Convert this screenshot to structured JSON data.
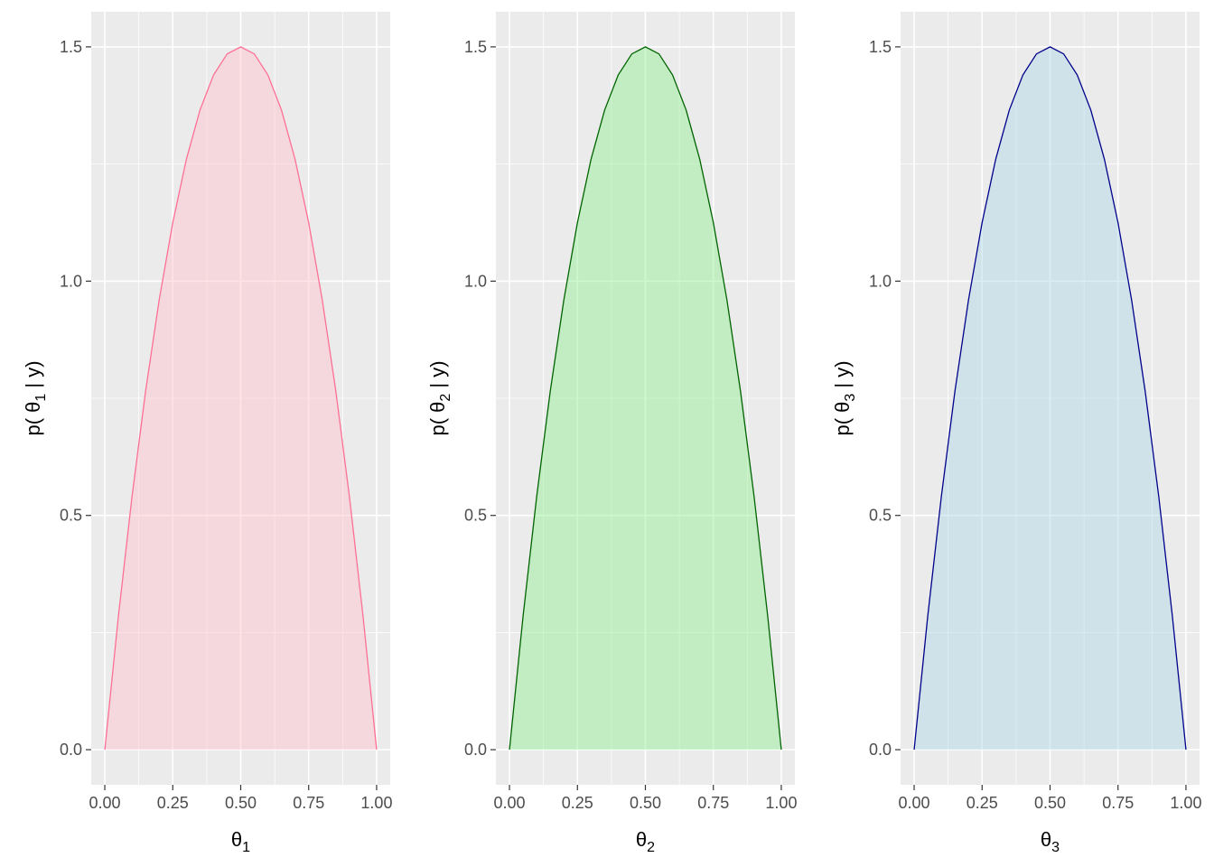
{
  "chart_data": [
    {
      "type": "area",
      "x": [
        0,
        0.05,
        0.1,
        0.15,
        0.2,
        0.25,
        0.3,
        0.35,
        0.4,
        0.45,
        0.5,
        0.55,
        0.6,
        0.65,
        0.7,
        0.75,
        0.8,
        0.85,
        0.9,
        0.95,
        1.0
      ],
      "y": [
        0,
        0.285,
        0.54,
        0.765,
        0.96,
        1.125,
        1.26,
        1.365,
        1.44,
        1.485,
        1.5,
        1.485,
        1.44,
        1.365,
        1.26,
        1.125,
        0.96,
        0.765,
        0.54,
        0.285,
        0
      ],
      "xlabel_base": "θ",
      "xlabel_sub": "1",
      "ylabel_pre": "p( θ",
      "ylabel_sub": "1",
      "ylabel_post": " | y)",
      "xlim": [
        0,
        1
      ],
      "ylim": [
        0,
        1.5
      ],
      "xticks": [
        "0.00",
        "0.25",
        "0.50",
        "0.75",
        "1.00"
      ],
      "yticks": [
        "0.0",
        "0.5",
        "1.0",
        "1.5"
      ],
      "grid": true,
      "line_color": "#ff6f94",
      "fill_color": "#ffc0cb"
    },
    {
      "type": "area",
      "x": [
        0,
        0.05,
        0.1,
        0.15,
        0.2,
        0.25,
        0.3,
        0.35,
        0.4,
        0.45,
        0.5,
        0.55,
        0.6,
        0.65,
        0.7,
        0.75,
        0.8,
        0.85,
        0.9,
        0.95,
        1.0
      ],
      "y": [
        0,
        0.285,
        0.54,
        0.765,
        0.96,
        1.125,
        1.26,
        1.365,
        1.44,
        1.485,
        1.5,
        1.485,
        1.44,
        1.365,
        1.26,
        1.125,
        0.96,
        0.765,
        0.54,
        0.285,
        0
      ],
      "xlabel_base": "θ",
      "xlabel_sub": "2",
      "ylabel_pre": "p( θ",
      "ylabel_sub": "2",
      "ylabel_post": " | y)",
      "xlim": [
        0,
        1
      ],
      "ylim": [
        0,
        1.5
      ],
      "xticks": [
        "0.00",
        "0.25",
        "0.50",
        "0.75",
        "1.00"
      ],
      "yticks": [
        "0.0",
        "0.5",
        "1.0",
        "1.5"
      ],
      "grid": true,
      "line_color": "#006400",
      "fill_color": "#90ee90"
    },
    {
      "type": "area",
      "x": [
        0,
        0.05,
        0.1,
        0.15,
        0.2,
        0.25,
        0.3,
        0.35,
        0.4,
        0.45,
        0.5,
        0.55,
        0.6,
        0.65,
        0.7,
        0.75,
        0.8,
        0.85,
        0.9,
        0.95,
        1.0
      ],
      "y": [
        0,
        0.285,
        0.54,
        0.765,
        0.96,
        1.125,
        1.26,
        1.365,
        1.44,
        1.485,
        1.5,
        1.485,
        1.44,
        1.365,
        1.26,
        1.125,
        0.96,
        0.765,
        0.54,
        0.285,
        0
      ],
      "xlabel_base": "θ",
      "xlabel_sub": "3",
      "ylabel_pre": "p( θ",
      "ylabel_sub": "3",
      "ylabel_post": " | y)",
      "xlim": [
        0,
        1
      ],
      "ylim": [
        0,
        1.5
      ],
      "xticks": [
        "0.00",
        "0.25",
        "0.50",
        "0.75",
        "1.00"
      ],
      "yticks": [
        "0.0",
        "0.5",
        "1.0",
        "1.5"
      ],
      "grid": true,
      "line_color": "#00008b",
      "fill_color": "#add8e6"
    }
  ]
}
